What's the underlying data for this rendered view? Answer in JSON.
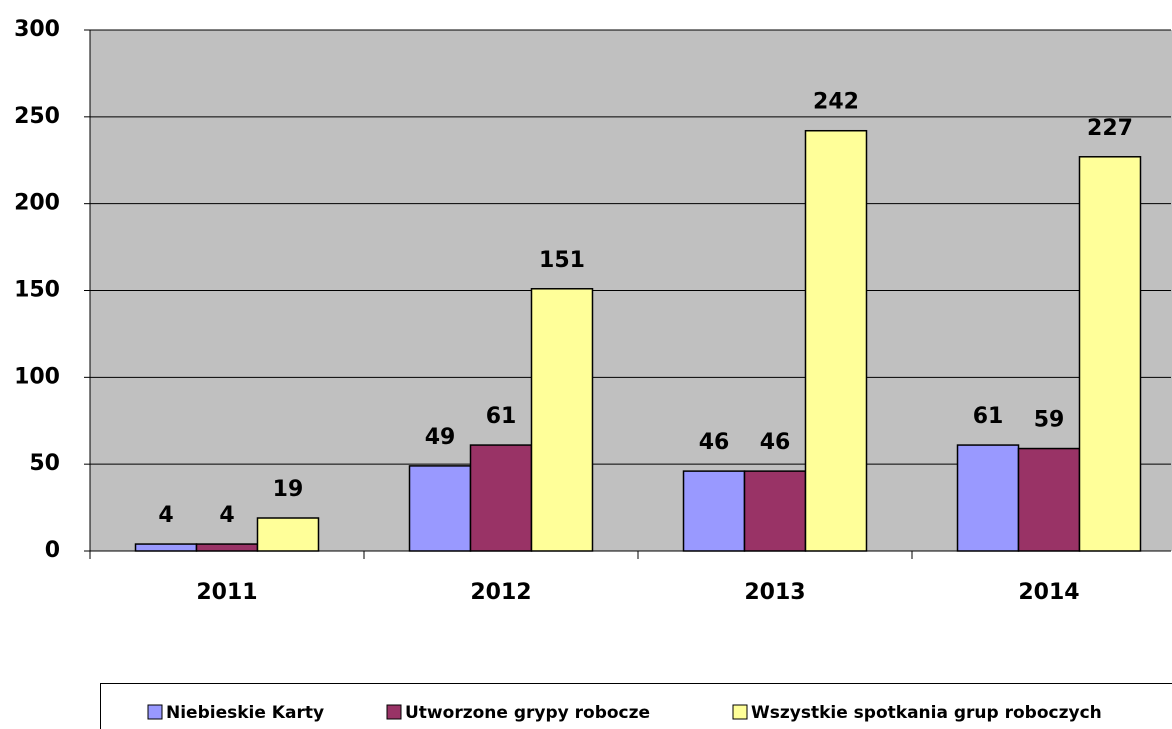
{
  "chart_data": {
    "type": "bar",
    "categories": [
      "2011",
      "2012",
      "2013",
      "2014"
    ],
    "series": [
      {
        "name": "Niebieskie Karty",
        "color": "#9999ff",
        "values": [
          4,
          49,
          46,
          61
        ]
      },
      {
        "name": "Utworzone grypy robocze",
        "color": "#993366",
        "values": [
          4,
          61,
          46,
          59
        ]
      },
      {
        "name": "Wszystkie spotkania grup roboczych",
        "color": "#ffff99",
        "values": [
          19,
          151,
          242,
          227
        ]
      }
    ],
    "ylim": [
      0,
      300
    ],
    "yticks": [
      0,
      50,
      100,
      150,
      200,
      250,
      300
    ],
    "grid": true
  }
}
